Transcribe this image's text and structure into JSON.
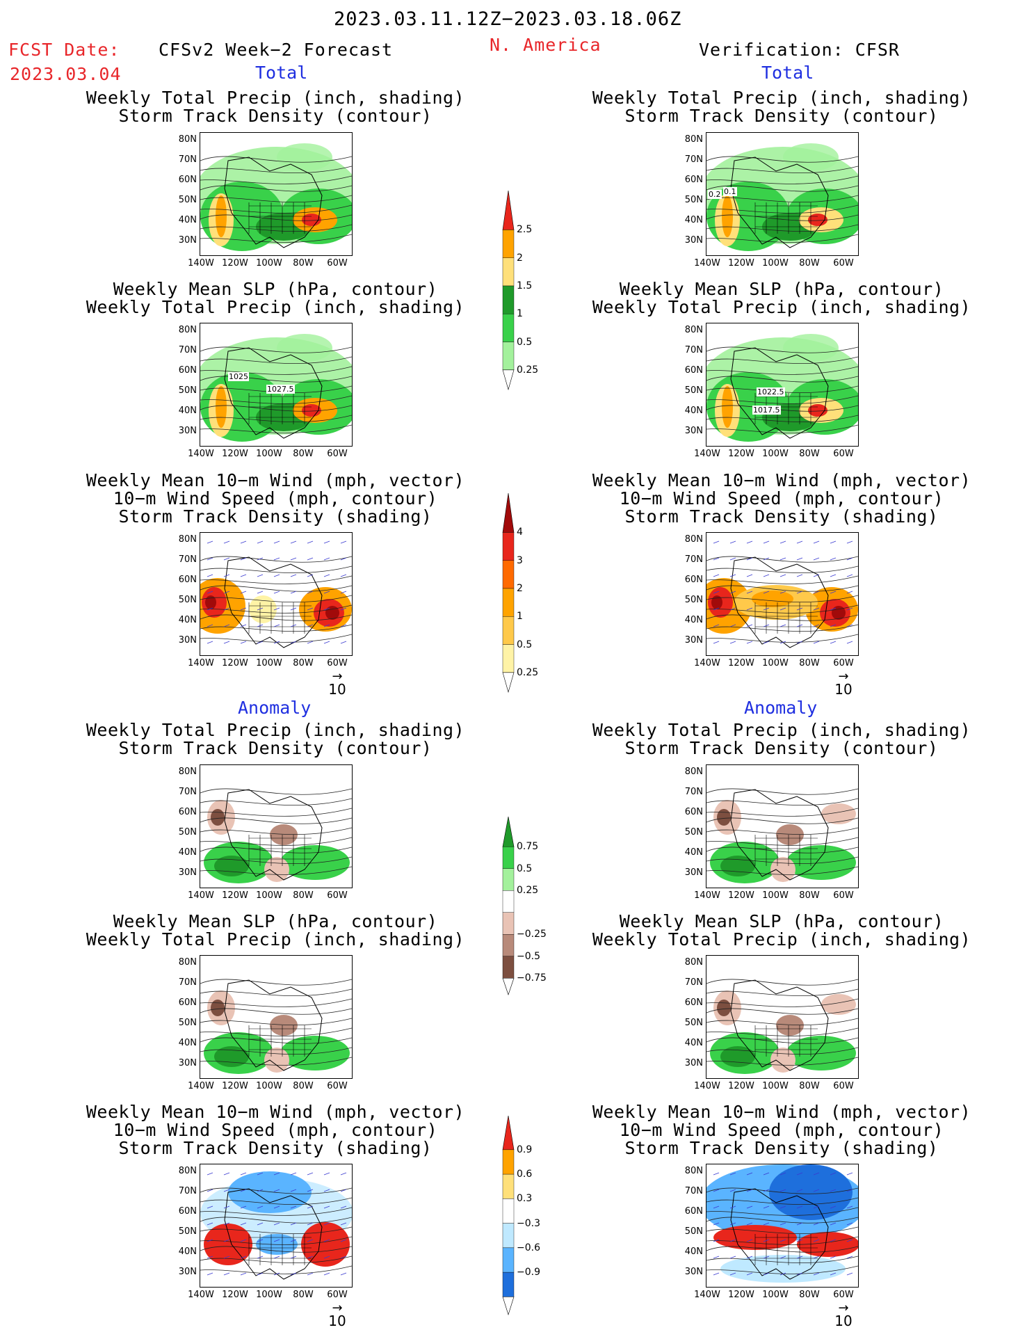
{
  "header": {
    "date_range": "2023.03.11.12Z−2023.03.18.06Z",
    "fcst_date_label": "FCST Date:",
    "fcst_date_value": "2023.03.04",
    "model_label": "CFSv2  Week−2  Forecast",
    "region": "N.  America",
    "verification_label": "Verification:  CFSR"
  },
  "sections": {
    "total": "Total",
    "anomaly": "Anomaly"
  },
  "panel_titles": {
    "precip_storm": [
      "Weekly  Total  Precip  (inch,  shading)",
      "Storm  Track  Density  (contour)"
    ],
    "slp_precip": [
      "Weekly  Mean  SLP  (hPa,  contour)",
      "Weekly  Total  Precip  (inch,  shading)"
    ],
    "wind_storm": [
      "Weekly  Mean  10−m  Wind  (mph,  vector)",
      "10−m  Wind  Speed  (mph,  contour)",
      "Storm  Track  Density  (shading)"
    ]
  },
  "axes": {
    "lat_labels": [
      "80N",
      "70N",
      "60N",
      "50N",
      "40N",
      "30N"
    ],
    "lon_labels": [
      "140W",
      "120W",
      "100W",
      "80W",
      "60W"
    ]
  },
  "vector_scale": "10",
  "contour_labels": {
    "fcst_slp": [
      "1025",
      "1027.5"
    ],
    "cfsr_slp": [
      "1022.5",
      "1017.5"
    ],
    "cfsr_storm": [
      "0.2",
      "0.1"
    ]
  },
  "colorbars": {
    "total_precip": {
      "labels": [
        "2.5",
        "2",
        "1.5",
        "1",
        "0.5",
        "0.25"
      ],
      "colors": [
        "#e8261c",
        "#ffa300",
        "#ffe07a",
        "#1f9a2a",
        "#39d14a",
        "#a3f19c"
      ]
    },
    "total_storm": {
      "labels": [
        "4",
        "3",
        "2",
        "1",
        "0.5",
        "0.25"
      ],
      "colors": [
        "#a10a0a",
        "#e8261c",
        "#ff6a00",
        "#ffa300",
        "#ffc94a",
        "#fff3a6"
      ]
    },
    "anom_precip": {
      "labels": [
        "0.75",
        "0.5",
        "0.25",
        "−0.25",
        "−0.5",
        "−0.75"
      ],
      "colors": [
        "#1f9a2a",
        "#39d14a",
        "#a3f19c",
        "#ffffff",
        "#e9c3b5",
        "#b88a7a",
        "#7d4f40"
      ]
    },
    "anom_storm": {
      "labels": [
        "0.9",
        "0.6",
        "0.3",
        "−0.3",
        "−0.6",
        "−0.9"
      ],
      "colors": [
        "#e8261c",
        "#ffa300",
        "#ffe07a",
        "#ffffff",
        "#bfe9ff",
        "#5ab4ff",
        "#1e6fdc"
      ]
    }
  }
}
